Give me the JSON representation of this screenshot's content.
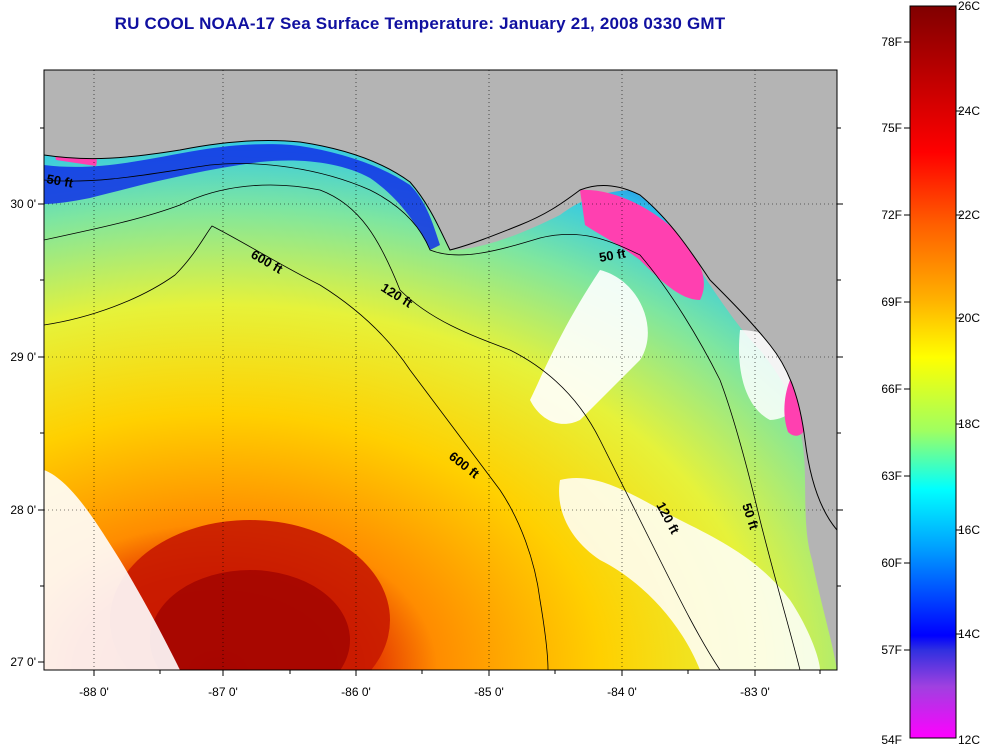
{
  "title": "RU COOL  NOAA-17  Sea Surface Temperature:  January 21, 2008 0330 GMT",
  "map": {
    "lon_labels": [
      "-88 0'",
      "-87 0'",
      "-86 0'",
      "-85 0'",
      "-84 0'",
      "-83 0'"
    ],
    "lat_labels": [
      "30 0'",
      "29 0'",
      "28 0'",
      "27 0'"
    ],
    "contour_labels": [
      "50 ft",
      "600 ft",
      "120 ft",
      "50 ft",
      "600 ft",
      "120 ft",
      "50 ft"
    ]
  },
  "colorbar": {
    "fahrenheit_labels": [
      "78F",
      "75F",
      "72F",
      "69F",
      "66F",
      "63F",
      "60F",
      "57F",
      "54F"
    ],
    "celsius_labels": [
      "26C",
      "24C",
      "22C",
      "20C",
      "18C",
      "16C",
      "14C",
      "12C"
    ],
    "colors": [
      "#8b0000",
      "#ff0000",
      "#ff8c00",
      "#ffff00",
      "#00ffff",
      "#0000ff",
      "#ff00ff"
    ]
  }
}
